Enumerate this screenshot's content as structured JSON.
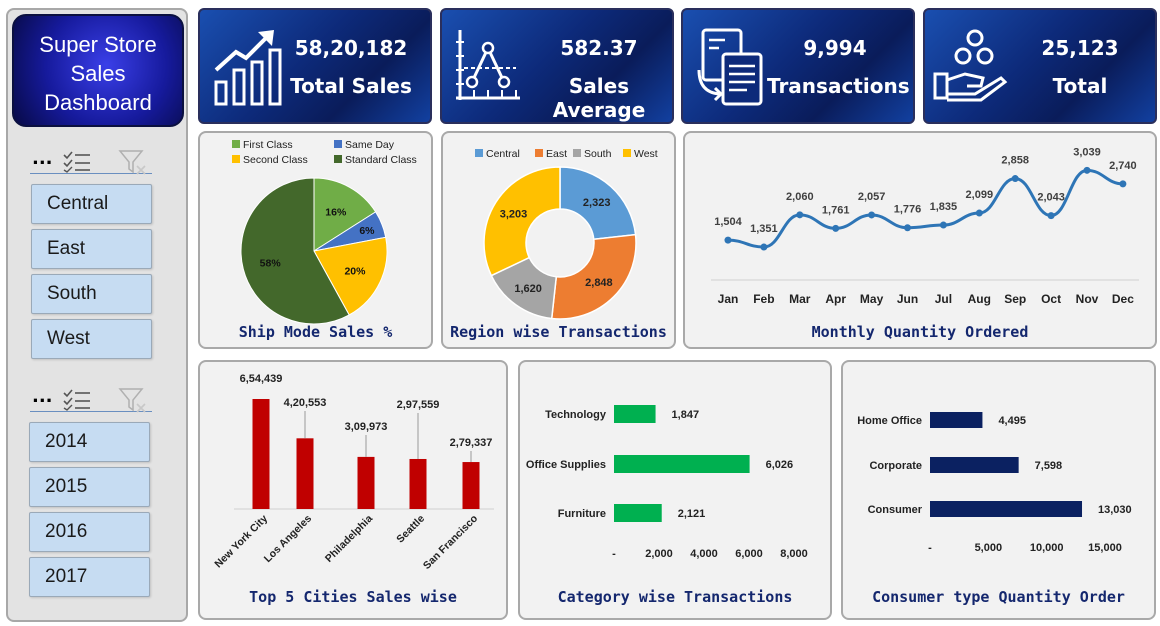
{
  "sidebar": {
    "logo_lines": [
      "Super Store",
      "Sales",
      "Dashboard"
    ],
    "slicer_more": "...",
    "regions": [
      "Central",
      "East",
      "South",
      "West"
    ],
    "years": [
      "2014",
      "2015",
      "2016",
      "2017"
    ]
  },
  "kpis": [
    {
      "value": "58,20,182",
      "label": "Total Sales",
      "icon": "growth-chart-icon"
    },
    {
      "value": "582.37",
      "label": "Sales Average",
      "icon": "line-graph-icon"
    },
    {
      "value": "9,994",
      "label": "Transactions",
      "icon": "invoice-exchange-icon"
    },
    {
      "value": "25,123",
      "label": "Total",
      "icon": "hand-coins-icon"
    }
  ],
  "colors": {
    "ship": [
      "#70ad47",
      "#4472c4",
      "#ffc000",
      "#43682b"
    ],
    "region": [
      "#5b9bd5",
      "#ed7d31",
      "#a5a5a5",
      "#ffc000"
    ],
    "line": "#2e75b6",
    "cities_bar": "#c00000",
    "category_bar": "#00b050",
    "consumer_bar": "#0b2161",
    "title": "#14276e"
  },
  "chart_data": [
    {
      "id": "ship",
      "type": "pie",
      "title": "Ship Mode Sales %",
      "legend": "top",
      "labels": [
        "First Class",
        "Same Day",
        "Second Class",
        "Standard Class"
      ],
      "slice_order": [
        "First Class",
        "Same Day",
        "Second Class",
        "Standard Class"
      ],
      "values": [
        16,
        6,
        20,
        58
      ],
      "value_labels": [
        "16%",
        "6%",
        "20%",
        "58%"
      ]
    },
    {
      "id": "region",
      "type": "pie",
      "donut": true,
      "title": "Region wise Transactions",
      "legend": "top",
      "labels": [
        "Central",
        "East",
        "South",
        "West"
      ],
      "values": [
        2323,
        2848,
        1620,
        3203
      ],
      "value_labels": [
        "2,323",
        "2,848",
        "1,620",
        "3,203"
      ]
    },
    {
      "id": "monthly",
      "type": "line",
      "title": "Monthly Quantity Ordered",
      "categories": [
        "Jan",
        "Feb",
        "Mar",
        "Apr",
        "May",
        "Jun",
        "Jul",
        "Aug",
        "Sep",
        "Oct",
        "Nov",
        "Dec"
      ],
      "values": [
        1504,
        1351,
        2060,
        1761,
        2057,
        1776,
        1835,
        2099,
        2858,
        2043,
        3039,
        2740
      ],
      "value_labels": [
        "1,504",
        "1,351",
        "2,060",
        "1,761",
        "2,057",
        "1,776",
        "1,835",
        "2,099",
        "2,858",
        "2,043",
        "3,039",
        "2,740"
      ]
    },
    {
      "id": "cities",
      "type": "bar",
      "title": "Top 5 Cities Sales wise",
      "categories": [
        "New York City",
        "Los Angeles",
        "Philadelphia",
        "Seattle",
        "San Francisco"
      ],
      "values": [
        654439,
        420553,
        309973,
        297559,
        279337
      ],
      "value_labels": [
        "6,54,439",
        "4,20,553",
        "3,09,973",
        "2,97,559",
        "2,79,337"
      ],
      "ylim": [
        0,
        700000
      ]
    },
    {
      "id": "category",
      "type": "bar",
      "orientation": "horizontal",
      "title": "Category wise Transactions",
      "categories": [
        "Technology",
        "Office Supplies",
        "Furniture"
      ],
      "values": [
        1847,
        6026,
        2121
      ],
      "value_labels": [
        "1,847",
        "6,026",
        "2,121"
      ],
      "xlim": [
        0,
        8000
      ],
      "x_ticks": [
        "-",
        "2,000",
        "4,000",
        "6,000",
        "8,000"
      ]
    },
    {
      "id": "consumer",
      "type": "bar",
      "orientation": "horizontal",
      "title": "Consumer type Quantity Order",
      "categories": [
        "Home Office",
        "Corporate",
        "Consumer"
      ],
      "values": [
        4495,
        7598,
        13030
      ],
      "value_labels": [
        "4,495",
        "7,598",
        "13,030"
      ],
      "xlim": [
        0,
        15000
      ],
      "x_ticks": [
        "-",
        "5,000",
        "10,000",
        "15,000"
      ]
    }
  ]
}
